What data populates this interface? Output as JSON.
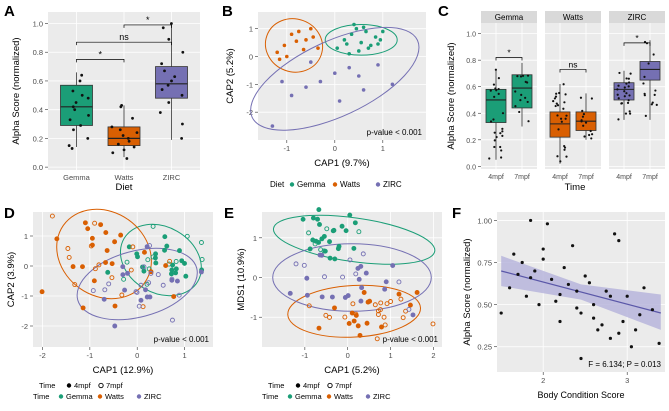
{
  "colors": {
    "gemma": "#1b9e77",
    "watts": "#d95f02",
    "zirc": "#7570b3",
    "panel_bg": "#ebebeb",
    "strip_bg": "#d9d9d9",
    "grid": "#ffffff",
    "regression": "#5a57a8",
    "ribbon": "#b7b5dc"
  },
  "panel_labels": [
    "A",
    "B",
    "C",
    "D",
    "E",
    "F"
  ],
  "chart_data": [
    {
      "panel": "A",
      "type": "box",
      "xlabel": "Diet",
      "ylabel": "Alpha Score (normalized)",
      "categories": [
        "Gemma",
        "Watts",
        "ZIRC"
      ],
      "ylim": [
        -0.02,
        1.08
      ],
      "yticks": [
        0.0,
        0.2,
        0.4,
        0.6,
        0.8,
        1.0
      ],
      "ytick_labels": [
        "0.0",
        "0.2",
        "0.4",
        "0.6",
        "0.8",
        "1.0"
      ],
      "boxes": [
        {
          "name": "Gemma",
          "whisker_low": 0.14,
          "q1": 0.29,
          "median": 0.42,
          "q3": 0.57,
          "whisker_high": 0.66
        },
        {
          "name": "Watts",
          "whisker_low": 0.07,
          "q1": 0.15,
          "median": 0.2,
          "q3": 0.28,
          "whisker_high": 0.43
        },
        {
          "name": "ZIRC",
          "whisker_low": 0.19,
          "q1": 0.48,
          "median": 0.58,
          "q3": 0.7,
          "whisker_high": 0.99
        }
      ],
      "points": [
        [
          0.13,
          0.15,
          0.2,
          0.26,
          0.29,
          0.33,
          0.36,
          0.4,
          0.42,
          0.45,
          0.48,
          0.5,
          0.53,
          0.6,
          0.64
        ],
        [
          0.06,
          0.1,
          0.12,
          0.14,
          0.16,
          0.18,
          0.2,
          0.22,
          0.24,
          0.26,
          0.28,
          0.34,
          0.42,
          0.43
        ],
        [
          0.2,
          0.3,
          0.38,
          0.45,
          0.5,
          0.54,
          0.57,
          0.6,
          0.63,
          0.67,
          0.72,
          0.8,
          0.89,
          0.97,
          1.0
        ]
      ],
      "brackets": [
        {
          "from": "Gemma",
          "to": "Watts",
          "label": "*",
          "y": 0.75
        },
        {
          "from": "Gemma",
          "to": "ZIRC",
          "label": "ns",
          "y": 0.87
        },
        {
          "from": "Watts",
          "to": "ZIRC",
          "label": "*",
          "y": 0.99
        }
      ]
    },
    {
      "panel": "B",
      "type": "scatter",
      "xlabel": "CAP1 (9.7%)",
      "ylabel": "CAP2 (5.2%)",
      "xlim": [
        -1.6,
        1.9
      ],
      "ylim": [
        -3.0,
        1.6
      ],
      "xticks": [
        -1,
        0,
        1
      ],
      "yticks": [
        -2,
        -1,
        0,
        1
      ],
      "annotation": "p-value < 0.001",
      "legend": {
        "title": "Diet",
        "entries": [
          "Gemma",
          "Watts",
          "ZIRC"
        ]
      },
      "series": [
        {
          "name": "Gemma",
          "x": [
            0.05,
            0.2,
            0.35,
            0.45,
            0.55,
            0.65,
            0.75,
            0.85,
            0.95,
            0.3,
            0.5,
            0.7,
            0.9,
            0.4,
            0.6,
            1.0,
            0.25
          ],
          "y": [
            0.3,
            0.6,
            0.8,
            1.0,
            0.5,
            0.9,
            0.4,
            0.7,
            0.6,
            0.1,
            0.2,
            0.3,
            0.45,
            1.15,
            1.05,
            0.9,
            0.45
          ]
        },
        {
          "name": "Watts",
          "x": [
            -1.2,
            -1.05,
            -0.9,
            -0.75,
            -0.6,
            -0.5,
            -0.35,
            -1.0,
            -0.8,
            -0.65,
            -0.45,
            -1.15
          ],
          "y": [
            0.15,
            0.4,
            0.8,
            0.9,
            0.6,
            1.0,
            0.3,
            0.0,
            0.55,
            0.25,
            0.7,
            -0.1
          ]
        },
        {
          "name": "ZIRC",
          "x": [
            -1.3,
            -0.9,
            -0.6,
            -0.3,
            0.0,
            0.3,
            0.6,
            0.9,
            1.2,
            -0.5,
            0.1,
            0.5,
            -1.1
          ],
          "y": [
            -2.5,
            -1.4,
            -1.1,
            -0.9,
            -0.6,
            -0.4,
            -1.2,
            -0.3,
            -1.0,
            -0.2,
            -1.6,
            -0.7,
            -0.9
          ]
        }
      ],
      "ellipses": [
        {
          "name": "Gemma",
          "cx": 0.55,
          "cy": 0.6,
          "rx": 0.75,
          "ry": 0.55,
          "angle": 0
        },
        {
          "name": "Watts",
          "cx": -0.85,
          "cy": 0.4,
          "rx": 0.6,
          "ry": 0.95,
          "angle": -20
        },
        {
          "name": "ZIRC",
          "cx": 0.0,
          "cy": -0.8,
          "rx": 1.9,
          "ry": 1.35,
          "angle": 25
        }
      ]
    },
    {
      "panel": "C",
      "type": "box",
      "xlabel": "Time",
      "ylabel": "Alpha Score (normalized)",
      "facets": [
        "Gemma",
        "Watts",
        "ZIRC"
      ],
      "categories": [
        "4mpf",
        "7mpf"
      ],
      "ylim": [
        -0.02,
        1.08
      ],
      "yticks": [
        0.0,
        0.2,
        0.4,
        0.6,
        0.8,
        1.0
      ],
      "ytick_labels": [
        "0.0",
        "0.2",
        "0.4",
        "0.6",
        "0.8",
        "1.0"
      ],
      "boxes": [
        {
          "facet": "Gemma",
          "name": "4mpf",
          "whisker_low": 0.05,
          "q1": 0.33,
          "median": 0.5,
          "q3": 0.58,
          "whisker_high": 0.73
        },
        {
          "facet": "Gemma",
          "name": "7mpf",
          "whisker_low": 0.3,
          "q1": 0.44,
          "median": 0.59,
          "q3": 0.69,
          "whisker_high": 0.78
        },
        {
          "facet": "Watts",
          "name": "4mpf",
          "whisker_low": 0.02,
          "q1": 0.22,
          "median": 0.32,
          "q3": 0.41,
          "whisker_high": 0.62
        },
        {
          "facet": "Watts",
          "name": "7mpf",
          "whisker_low": 0.2,
          "q1": 0.27,
          "median": 0.34,
          "q3": 0.41,
          "whisker_high": 0.55
        },
        {
          "facet": "ZIRC",
          "name": "4mpf",
          "whisker_low": 0.35,
          "q1": 0.5,
          "median": 0.58,
          "q3": 0.63,
          "whisker_high": 0.72
        },
        {
          "facet": "ZIRC",
          "name": "7mpf",
          "whisker_low": 0.35,
          "q1": 0.65,
          "median": 0.73,
          "q3": 0.79,
          "whisker_high": 0.95
        }
      ],
      "brackets": [
        {
          "facet": "Gemma",
          "label": "*",
          "y": 0.82
        },
        {
          "facet": "Watts",
          "label": "ns",
          "y": 0.73
        },
        {
          "facet": "ZIRC",
          "label": "*",
          "y": 0.93
        }
      ]
    },
    {
      "panel": "D",
      "type": "scatter",
      "xlabel": "CAP1 (12.9%)",
      "ylabel": "CAP2 (3.9%)",
      "xlim": [
        -2.2,
        1.6
      ],
      "ylim": [
        -2.7,
        1.8
      ],
      "xticks": [
        -2,
        -1,
        0,
        1
      ],
      "yticks": [
        -2,
        -1,
        0,
        1
      ],
      "annotation": "p-value < 0.001",
      "legend_time": {
        "title": "Time",
        "entries": [
          "4mpf",
          "7mpf"
        ]
      },
      "legend": {
        "title": "Time",
        "entries": [
          "Gemma",
          "Watts",
          "ZIRC"
        ]
      },
      "ellipses": [
        {
          "name": "Gemma",
          "cx": 0.5,
          "cy": 0.2,
          "rx": 0.9,
          "ry": 1.1,
          "angle": -30
        },
        {
          "name": "Watts",
          "cx": -0.7,
          "cy": 0.4,
          "rx": 1.05,
          "ry": 1.4,
          "angle": -35
        },
        {
          "name": "ZIRC",
          "cx": 0.0,
          "cy": -0.6,
          "rx": 1.3,
          "ry": 1.1,
          "angle": 15
        }
      ]
    },
    {
      "panel": "E",
      "type": "scatter",
      "xlabel": "CAP1 (5.2%)",
      "ylabel": "MDS1 (10.9%)",
      "xlim": [
        -2.0,
        2.2
      ],
      "ylim": [
        -1.75,
        1.65
      ],
      "xticks": [
        -1,
        0,
        1,
        2
      ],
      "yticks": [
        -1,
        0,
        1
      ],
      "annotation": "p-value < 0.001",
      "legend_time": {
        "title": "Time",
        "entries": [
          "4mpf",
          "7mpf"
        ]
      },
      "legend": {
        "title": "Time",
        "entries": [
          "Gemma",
          "Watts",
          "ZIRC"
        ]
      },
      "ellipses": [
        {
          "name": "Gemma",
          "cx": 0.15,
          "cy": 0.95,
          "rx": 1.9,
          "ry": 0.55,
          "angle": -8
        },
        {
          "name": "Watts",
          "cx": 0.15,
          "cy": -0.85,
          "rx": 1.55,
          "ry": 0.65,
          "angle": 3
        },
        {
          "name": "ZIRC",
          "cx": 0.1,
          "cy": 0.0,
          "rx": 1.85,
          "ry": 0.85,
          "angle": 0
        }
      ]
    },
    {
      "panel": "F",
      "type": "scatter",
      "xlabel": "Body Condition Score",
      "ylabel": "Alpha Score (normalized)",
      "xlim": [
        1.45,
        3.45
      ],
      "ylim": [
        0.1,
        1.05
      ],
      "xticks": [
        2,
        3
      ],
      "yticks": [
        0.25,
        0.5,
        0.75,
        1.0
      ],
      "ytick_labels": [
        "0.25",
        "0.50",
        "0.75",
        "1.00"
      ],
      "annotation": "F = 6.134; P = 0.013",
      "regression": {
        "x": [
          1.5,
          3.4
        ],
        "y": [
          0.7,
          0.45
        ],
        "ci_low_start": 0.61,
        "ci_high_start": 0.79,
        "ci_low_end": 0.35,
        "ci_high_end": 0.56
      },
      "x": [
        1.5,
        1.6,
        1.65,
        1.7,
        1.75,
        1.8,
        1.85,
        1.9,
        1.95,
        2.0,
        2.05,
        2.1,
        2.15,
        2.2,
        2.25,
        2.3,
        2.35,
        2.4,
        2.45,
        2.5,
        2.55,
        2.6,
        2.65,
        2.7,
        2.75,
        2.8,
        2.85,
        2.9,
        2.95,
        3.0,
        3.05,
        3.1,
        3.15,
        3.2,
        3.3,
        3.38,
        1.85,
        2.0,
        2.2,
        2.4,
        2.6,
        2.8,
        2.9,
        2.45
      ],
      "y": [
        0.45,
        0.6,
        0.8,
        0.68,
        0.75,
        0.55,
        1.0,
        0.7,
        0.5,
        0.77,
        0.98,
        0.65,
        0.52,
        0.4,
        0.72,
        0.62,
        0.85,
        0.58,
        0.45,
        0.67,
        0.63,
        0.5,
        0.35,
        0.38,
        0.58,
        0.3,
        0.92,
        0.88,
        0.4,
        0.55,
        0.25,
        0.35,
        0.44,
        0.6,
        0.47,
        0.27,
        0.66,
        0.83,
        0.56,
        0.48,
        0.42,
        0.55,
        0.33,
        0.18
      ]
    }
  ]
}
